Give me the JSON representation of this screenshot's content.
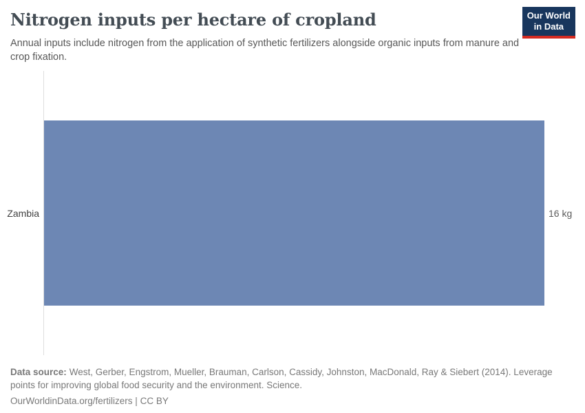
{
  "header": {
    "title": "Nitrogen inputs per hectare of cropland",
    "subtitle": "Annual inputs include nitrogen from the application of synthetic fertilizers alongside organic inputs from manure and crop fixation.",
    "logo": {
      "line1": "Our World",
      "line2": "in Data"
    }
  },
  "chart_data": {
    "type": "bar",
    "orientation": "horizontal",
    "categories": [
      "Zambia"
    ],
    "values": [
      16
    ],
    "unit": "kg",
    "value_labels": [
      "16 kg"
    ],
    "title": "Nitrogen inputs per hectare of cropland",
    "xlabel": "",
    "ylabel": "",
    "xlim": [
      0,
      16
    ],
    "grid": false,
    "legend": "none"
  },
  "footer": {
    "source_label": "Data source:",
    "source_text": "West, Gerber, Engstrom, Mueller, Brauman, Carlson, Cassidy, Johnston, MacDonald, Ray & Siebert (2014). Leverage points for improving global food security and the environment. Science.",
    "citation": "OurWorldinData.org/fertilizers | CC BY"
  },
  "colors": {
    "bar": "#6d87b4",
    "logo_bg": "#18365d",
    "logo_stripe": "#d42b21",
    "axis_line": "#dedede"
  }
}
